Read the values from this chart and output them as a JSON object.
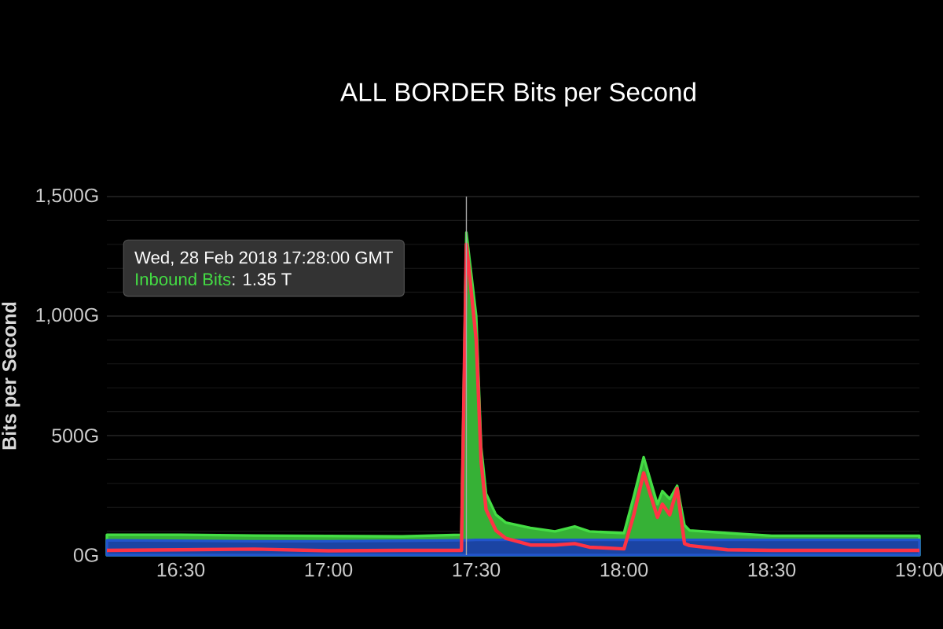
{
  "chart_data": {
    "type": "area",
    "title": "ALL BORDER Bits per Second",
    "ylabel": "Bits per Second",
    "x": [
      16.25,
      16.5,
      16.75,
      17.0,
      17.25,
      17.45,
      17.4667,
      17.5,
      17.5167,
      17.5333,
      17.5667,
      17.6,
      17.6833,
      17.7667,
      17.8333,
      17.8833,
      18.0,
      18.0333,
      18.0667,
      18.1133,
      18.13,
      18.155,
      18.18,
      18.205,
      18.2222,
      18.35,
      18.5,
      18.75,
      19.0
    ],
    "series": [
      {
        "name": "Inbound Bits",
        "type": "area",
        "color": "#44dd44",
        "values": [
          85,
          85,
          82,
          80,
          78,
          85,
          1350,
          1000,
          454,
          257,
          169,
          136,
          114,
          99,
          120,
          99,
          92,
          246,
          410,
          213,
          268,
          235,
          290,
          125,
          103,
          92,
          81,
          81,
          81
        ]
      },
      {
        "color": "#2255cc",
        "values": [
          62,
          60,
          58,
          58,
          60,
          62,
          62,
          64,
          64,
          64,
          64,
          64,
          64,
          64,
          64,
          64,
          64,
          64,
          64,
          64,
          64,
          64,
          64,
          64,
          64,
          64,
          64,
          64,
          64
        ]
      },
      {
        "type": "line",
        "color": "#ff3344",
        "values": [
          20,
          22,
          25,
          18,
          20,
          20,
          1300,
          900,
          388,
          191,
          103,
          70,
          42,
          42,
          48,
          33,
          26,
          169,
          344,
          158,
          213,
          169,
          279,
          48,
          40,
          22,
          20,
          20,
          20
        ]
      }
    ],
    "xlim": [
      16.25,
      19.0
    ],
    "xticks": [
      {
        "value": 16.5,
        "label": "16:30"
      },
      {
        "value": 17.0,
        "label": "17:00"
      },
      {
        "value": 17.5,
        "label": "17:30"
      },
      {
        "value": 18.0,
        "label": "18:00"
      },
      {
        "value": 18.5,
        "label": "18:30"
      },
      {
        "value": 19.0,
        "label": "19:00"
      }
    ],
    "ylim": [
      0,
      1500
    ],
    "yticks": [
      {
        "value": 0,
        "label": "0G"
      },
      {
        "value": 500,
        "label": "500G"
      },
      {
        "value": 1000,
        "label": "1,000G"
      },
      {
        "value": 1500,
        "label": "1,500G"
      }
    ],
    "grid": "y",
    "ref_lines": [
      {
        "axis": "x",
        "value": 17.4667,
        "color": "#aaaaaa"
      }
    ],
    "annotations": [
      "Wed, 28 Feb 2018 17:28:00 GMT",
      ": 1.35 T"
    ]
  }
}
